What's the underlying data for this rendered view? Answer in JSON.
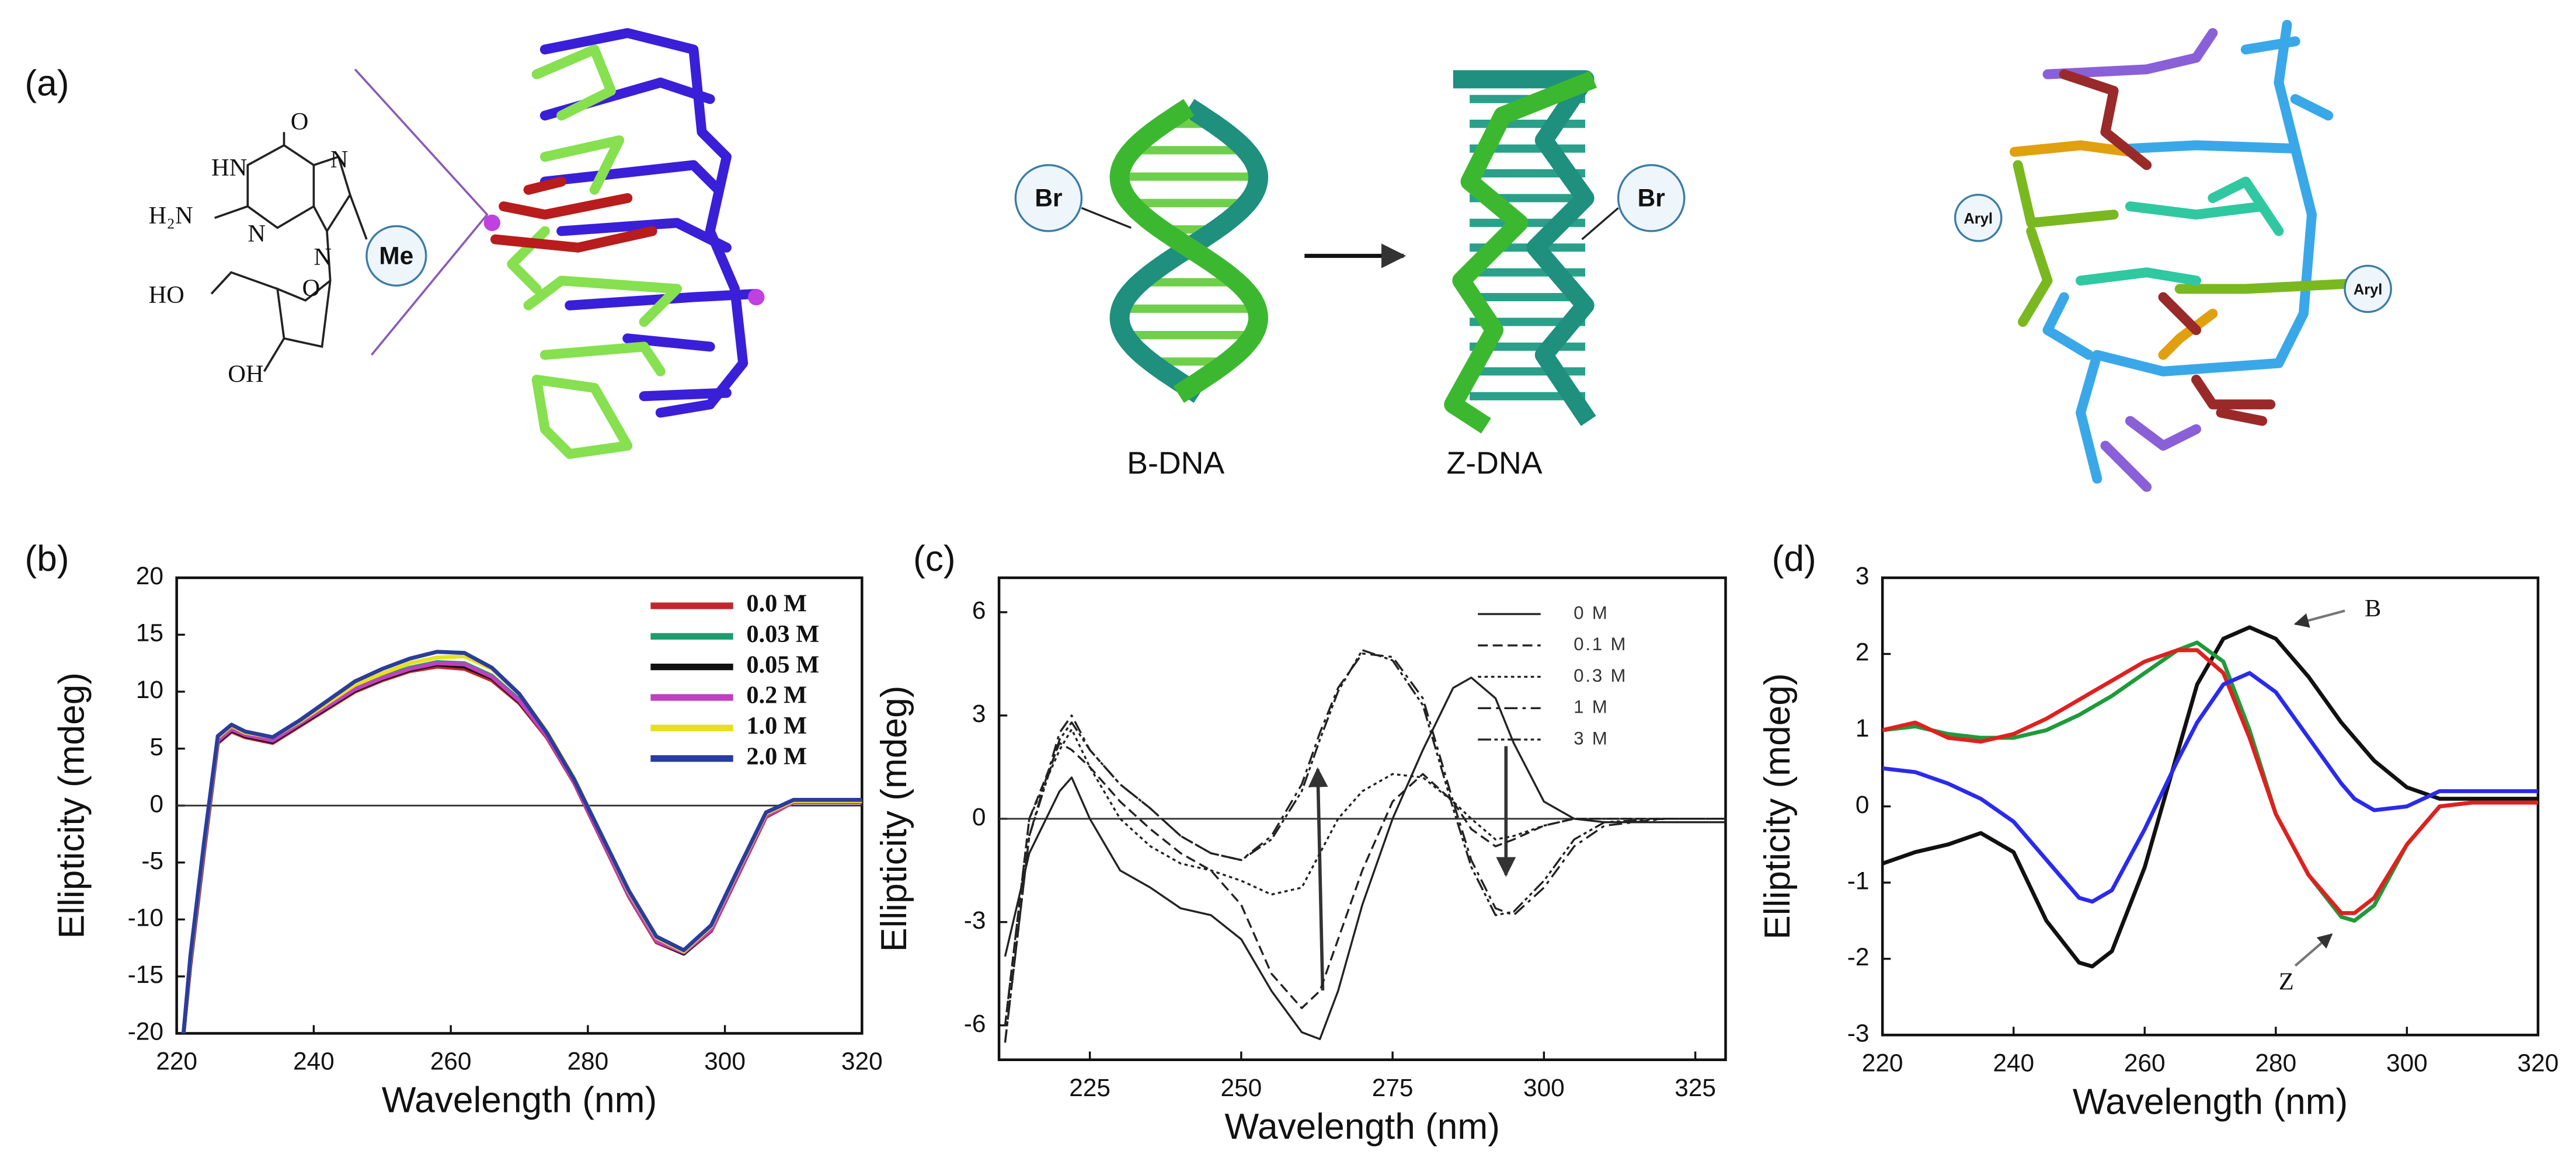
{
  "panel_a": {
    "label": "(a)",
    "chem": [
      "O",
      "HN",
      "H₂N",
      "N",
      "N",
      "N",
      "HO",
      "O",
      "OH"
    ],
    "me": "Me",
    "br": [
      "Br",
      "Br"
    ],
    "b_dna": "B-DNA",
    "z_dna": "Z-DNA",
    "aryl": [
      "Aryl",
      "Aryl"
    ]
  },
  "chart_data": [
    {
      "type": "line",
      "label": "(b)",
      "xlabel": "Wavelength (nm)",
      "ylabel": "Ellipticity (mdeg)",
      "xlim": [
        220,
        320
      ],
      "xticks": [
        220,
        240,
        260,
        280,
        300,
        320
      ],
      "ylim": [
        -20,
        20
      ],
      "yticks": [
        -20,
        -15,
        -10,
        -5,
        0,
        5,
        10,
        15,
        20
      ],
      "zero_line": true,
      "legend": "upper right",
      "x": [
        221,
        222,
        224,
        226,
        228,
        230,
        234,
        238,
        242,
        246,
        250,
        254,
        258,
        262,
        266,
        270,
        274,
        278,
        282,
        286,
        290,
        294,
        298,
        302,
        306,
        310,
        314,
        320
      ],
      "series": [
        {
          "name": "0.0 M",
          "color": "#c0282d",
          "values": [
            -20,
            -14,
            -4,
            5.5,
            6.5,
            6,
            5.5,
            7,
            8.5,
            10,
            11,
            11.8,
            12.2,
            12,
            11,
            9,
            6,
            2,
            -3,
            -8,
            -12,
            -13,
            -11,
            -6,
            -1,
            0.3,
            0.3,
            0.3
          ]
        },
        {
          "name": "0.03 M",
          "color": "#1e9c6e",
          "values": [
            -20,
            -13.5,
            -3.5,
            5.8,
            6.8,
            6.2,
            5.8,
            7.2,
            8.8,
            10.3,
            11.3,
            12.1,
            12.6,
            12.5,
            11.4,
            9.3,
            6.2,
            2.2,
            -2.8,
            -7.8,
            -11.8,
            -12.9,
            -10.8,
            -5.8,
            -0.8,
            0.4,
            0.4,
            0.4
          ]
        },
        {
          "name": "0.05 M",
          "color": "#111111",
          "values": [
            -20,
            -13.8,
            -3.8,
            5.6,
            6.6,
            6.1,
            5.6,
            7.1,
            8.6,
            10.1,
            11.1,
            11.9,
            12.4,
            12.2,
            11.2,
            9.1,
            6.1,
            2.1,
            -2.9,
            -7.9,
            -11.9,
            -13,
            -10.9,
            -5.9,
            -0.9,
            0.3,
            0.3,
            0.3
          ]
        },
        {
          "name": "0.2 M",
          "color": "#c040c0",
          "values": [
            -20,
            -13.6,
            -3.6,
            5.7,
            6.7,
            6.2,
            5.7,
            7.2,
            8.7,
            10.2,
            11.2,
            12,
            12.5,
            12.4,
            11.3,
            9.2,
            6.1,
            2.1,
            -2.9,
            -7.9,
            -11.9,
            -12.9,
            -10.9,
            -5.9,
            -0.9,
            0.3,
            0.3,
            0.3
          ]
        },
        {
          "name": "1.0 M",
          "color": "#e8e020",
          "values": [
            -20,
            -13.4,
            -3.4,
            6,
            7,
            6.4,
            6,
            7.4,
            9,
            10.6,
            11.6,
            12.5,
            13,
            13.1,
            12,
            9.8,
            6.5,
            2.4,
            -2.6,
            -7.6,
            -11.6,
            -12.8,
            -10.6,
            -5.6,
            -0.7,
            0.4,
            0.4,
            0.4
          ]
        },
        {
          "name": "2.0 M",
          "color": "#2a3d9c",
          "values": [
            -20,
            -13.2,
            -3.2,
            6.1,
            7.1,
            6.5,
            6,
            7.5,
            9.2,
            10.9,
            12,
            12.9,
            13.5,
            13.4,
            12.1,
            9.8,
            6.4,
            2.3,
            -2.6,
            -7.5,
            -11.5,
            -12.7,
            -10.5,
            -5.5,
            -0.6,
            0.5,
            0.5,
            0.5
          ]
        }
      ]
    },
    {
      "type": "line",
      "label": "(c)",
      "xlabel": "Wavelength (nm)",
      "ylabel": "Ellipticity (mdeg)",
      "xlim": [
        210,
        330
      ],
      "xticks": [
        225,
        250,
        275,
        300,
        325
      ],
      "ylim": [
        -7,
        7
      ],
      "yticks": [
        -6,
        -3,
        0,
        3,
        6
      ],
      "zero_line": true,
      "legend": "upper right",
      "x": [
        211,
        215,
        220,
        222,
        225,
        230,
        235,
        240,
        245,
        250,
        255,
        260,
        263,
        266,
        270,
        275,
        280,
        285,
        288,
        292,
        295,
        300,
        305,
        310,
        320,
        330
      ],
      "series": [
        {
          "name": "0 M",
          "color": "#222222",
          "dash": "solid",
          "values": [
            -4,
            -1,
            0.8,
            1.2,
            0,
            -1.5,
            -2,
            -2.6,
            -2.8,
            -3.5,
            -5,
            -6.2,
            -6.4,
            -5,
            -2.5,
            0,
            2,
            3.8,
            4.1,
            3.5,
            2.2,
            0.5,
            0,
            -0.1,
            -0.1,
            -0.1
          ]
        },
        {
          "name": "0.1 M",
          "color": "#222222",
          "dash": "dashed",
          "values": [
            -6,
            0,
            2.2,
            2,
            1.5,
            0.5,
            -0.3,
            -1,
            -1.5,
            -2.5,
            -4.5,
            -5.5,
            -5,
            -3.5,
            -1.5,
            0.5,
            1.3,
            0.5,
            -0.3,
            -0.8,
            -0.6,
            -0.2,
            0,
            0,
            0,
            0
          ]
        },
        {
          "name": "0.3 M",
          "color": "#222222",
          "dash": "dotted",
          "values": [
            -6,
            0,
            2,
            2.6,
            1.5,
            0,
            -0.8,
            -1.3,
            -1.5,
            -1.8,
            -2.2,
            -2,
            -1,
            0,
            0.8,
            1.3,
            1.2,
            0.5,
            0,
            -0.6,
            -0.5,
            -0.2,
            0,
            0,
            0,
            0
          ]
        },
        {
          "name": "1 M",
          "color": "#222222",
          "dash": "dashdot",
          "values": [
            -6.5,
            -0.5,
            2.5,
            3,
            2,
            1,
            0.3,
            -0.5,
            -1,
            -1.2,
            -0.5,
            1,
            2.5,
            3.8,
            4.8,
            4.7,
            3.5,
            0.5,
            -1.2,
            -2.6,
            -2.8,
            -2,
            -0.8,
            -0.2,
            0,
            0
          ]
        },
        {
          "name": "3 M",
          "color": "#222222",
          "dash": "dashdotdot",
          "values": [
            -6.5,
            -0.5,
            2.3,
            2.8,
            2,
            1,
            0.3,
            -0.5,
            -1,
            -1.2,
            -0.6,
            0.8,
            2.3,
            3.7,
            4.9,
            4.6,
            3.3,
            0.3,
            -1.4,
            -2.8,
            -2.7,
            -1.8,
            -0.6,
            -0.1,
            0,
            0
          ]
        }
      ]
    },
    {
      "type": "line",
      "label": "(d)",
      "xlabel": "Wavelength (nm)",
      "ylabel": "Ellipticity (mdeg)",
      "xlim": [
        220,
        320
      ],
      "xticks": [
        220,
        240,
        260,
        280,
        300,
        320
      ],
      "ylim": [
        -3,
        3
      ],
      "yticks": [
        -3,
        -2,
        -1,
        0,
        1,
        2,
        3
      ],
      "zero_line": false,
      "annotations": [
        {
          "text": "B"
        },
        {
          "text": "Z"
        }
      ],
      "x": [
        220,
        225,
        230,
        235,
        240,
        245,
        250,
        252,
        255,
        260,
        265,
        268,
        272,
        276,
        280,
        285,
        290,
        292,
        295,
        300,
        305,
        310,
        320
      ],
      "series": [
        {
          "color": "#111111",
          "values": [
            -0.75,
            -0.6,
            -0.5,
            -0.35,
            -0.6,
            -1.5,
            -2.05,
            -2.1,
            -1.9,
            -0.8,
            0.7,
            1.6,
            2.2,
            2.35,
            2.2,
            1.7,
            1.1,
            0.9,
            0.6,
            0.25,
            0.1,
            0.1,
            0.1
          ]
        },
        {
          "color": "#1f9a3a",
          "values": [
            1,
            1.05,
            0.95,
            0.9,
            0.9,
            1,
            1.2,
            1.3,
            1.45,
            1.75,
            2.05,
            2.15,
            1.9,
            1,
            -0.1,
            -0.9,
            -1.45,
            -1.5,
            -1.3,
            -0.5,
            0,
            0.05,
            0.05
          ]
        },
        {
          "color": "#e02020",
          "values": [
            1,
            1.1,
            0.9,
            0.85,
            0.95,
            1.15,
            1.4,
            1.5,
            1.65,
            1.9,
            2.05,
            2.05,
            1.75,
            0.9,
            -0.1,
            -0.9,
            -1.4,
            -1.4,
            -1.2,
            -0.5,
            0,
            0.05,
            0.05
          ]
        },
        {
          "color": "#2a2aee",
          "values": [
            0.5,
            0.45,
            0.3,
            0.1,
            -0.2,
            -0.7,
            -1.2,
            -1.25,
            -1.1,
            -0.3,
            0.6,
            1.1,
            1.6,
            1.75,
            1.5,
            0.9,
            0.3,
            0.1,
            -0.05,
            0,
            0.2,
            0.2,
            0.2
          ]
        }
      ]
    }
  ]
}
